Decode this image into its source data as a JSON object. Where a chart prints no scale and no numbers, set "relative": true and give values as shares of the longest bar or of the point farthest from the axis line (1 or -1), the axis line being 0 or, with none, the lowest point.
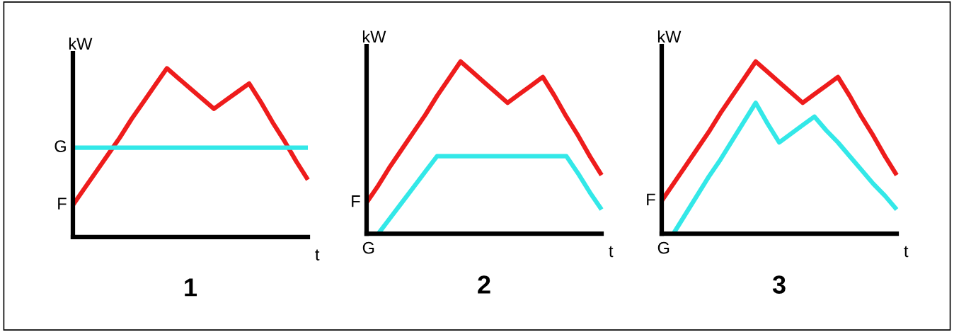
{
  "chart_data": [
    {
      "type": "line",
      "title": "1",
      "xlabel": "t",
      "ylabel": "kW",
      "relative": true,
      "categories": [
        null,
        null,
        null,
        null,
        null,
        null,
        null,
        null,
        null,
        null,
        null,
        null,
        null,
        null,
        null,
        null,
        null,
        null,
        null,
        null,
        null
      ],
      "series": [
        {
          "color": "#ee1c1c",
          "values": [
            0.19,
            0.29,
            0.39,
            0.49,
            0.59,
            0.7,
            0.8,
            0.9,
            1,
            0.94,
            0.88,
            0.82,
            0.76,
            0.81,
            0.86,
            0.91,
            0.8,
            0.68,
            0.57,
            0.45,
            0.34
          ]
        },
        {
          "color": "#33e8e8",
          "values": [
            0.53,
            0.53,
            0.53,
            0.53,
            0.53,
            0.53,
            0.53,
            0.53,
            0.53,
            0.53,
            0.53,
            0.53,
            0.53,
            0.53,
            0.53,
            0.53,
            0.53,
            0.53,
            0.53,
            0.53,
            0.53
          ]
        }
      ],
      "annotations": [
        "F",
        "G"
      ]
    },
    {
      "type": "line",
      "title": "2",
      "xlabel": "t",
      "ylabel": "kW",
      "relative": true,
      "categories": [
        null,
        null,
        null,
        null,
        null,
        null,
        null,
        null,
        null,
        null,
        null,
        null,
        null,
        null,
        null,
        null,
        null,
        null,
        null,
        null,
        null
      ],
      "series": [
        {
          "color": "#ee1c1c",
          "values": [
            0.18,
            0.28,
            0.39,
            0.49,
            0.59,
            0.69,
            0.8,
            0.9,
            1,
            0.94,
            0.88,
            0.82,
            0.76,
            0.81,
            0.86,
            0.91,
            0.8,
            0.68,
            0.57,
            0.45,
            0.34
          ]
        },
        {
          "color": "#33e8e8",
          "values": [
            null,
            0,
            0.09,
            0.18,
            0.27,
            0.36,
            0.45,
            0.45,
            0.45,
            0.45,
            0.45,
            0.45,
            0.45,
            0.45,
            0.45,
            0.45,
            0.45,
            0.45,
            0.35,
            0.24,
            0.14
          ]
        }
      ],
      "annotations": [
        "F",
        "G"
      ]
    },
    {
      "type": "line",
      "title": "3",
      "xlabel": "t",
      "ylabel": "kW",
      "relative": true,
      "categories": [
        null,
        null,
        null,
        null,
        null,
        null,
        null,
        null,
        null,
        null,
        null,
        null,
        null,
        null,
        null,
        null,
        null,
        null,
        null,
        null,
        null
      ],
      "series": [
        {
          "color": "#ee1c1c",
          "values": [
            0.19,
            0.29,
            0.39,
            0.49,
            0.59,
            0.7,
            0.8,
            0.9,
            1,
            0.94,
            0.88,
            0.82,
            0.76,
            0.81,
            0.86,
            0.91,
            0.8,
            0.68,
            0.57,
            0.45,
            0.34
          ]
        },
        {
          "color": "#33e8e8",
          "values": [
            null,
            0,
            0.11,
            0.22,
            0.33,
            0.43,
            0.54,
            0.65,
            0.76,
            0.64,
            0.53,
            0.58,
            0.63,
            0.68,
            0.6,
            0.53,
            0.45,
            0.37,
            0.29,
            0.22,
            0.14
          ]
        }
      ],
      "annotations": [
        "F",
        "G"
      ]
    }
  ]
}
